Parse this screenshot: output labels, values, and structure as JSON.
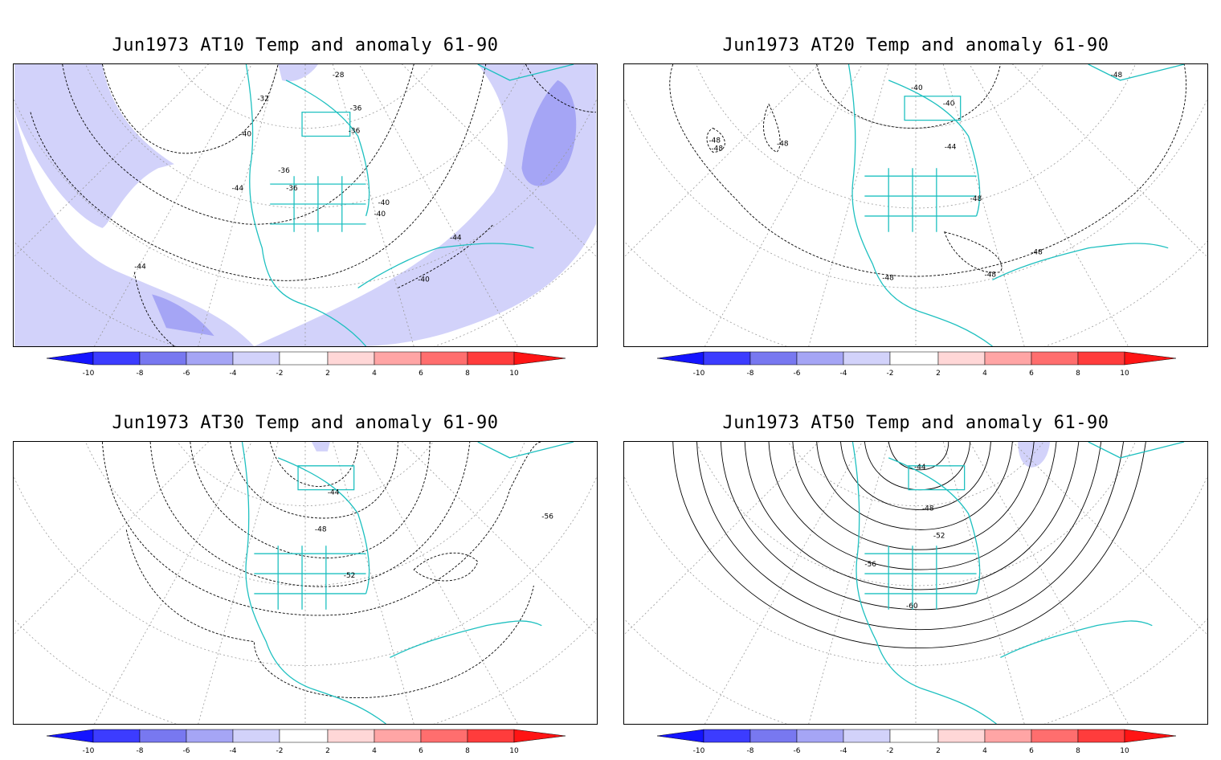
{
  "panels": [
    {
      "title": "Jun1973 AT10 Temp and anomaly 61-90",
      "contour_labels": [
        "-28",
        "-32",
        "-36",
        "-36",
        "-36",
        "-36",
        "-40",
        "-40",
        "-40",
        "-44",
        "-44",
        "-44",
        "-40"
      ]
    },
    {
      "title": "Jun1973 AT20 Temp and anomaly 61-90",
      "contour_labels": [
        "-40",
        "-40",
        "-44",
        "-48",
        "-48",
        "-48",
        "-48",
        "-48",
        "-48",
        "-48",
        "-48"
      ]
    },
    {
      "title": "Jun1973 AT30 Temp and anomaly 61-90",
      "contour_labels": [
        "-44",
        "-48",
        "-52",
        "-56"
      ]
    },
    {
      "title": "Jun1973 AT50 Temp and anomaly 61-90",
      "contour_labels": [
        "-44",
        "-48",
        "-52",
        "-56",
        "-60"
      ]
    }
  ],
  "colorbar": {
    "ticks": [
      "-10",
      "-8",
      "-6",
      "-4",
      "-2",
      "2",
      "4",
      "6",
      "8",
      "10"
    ],
    "colors": [
      "#1414ff",
      "#3c3cff",
      "#7878f0",
      "#a5a5f5",
      "#d2d2fa",
      "#ffffff",
      "#ffd7d7",
      "#ffa5a5",
      "#ff6e6e",
      "#ff3c3c",
      "#ff1414"
    ]
  },
  "colors": {
    "coastline": "#1ec0c0",
    "contour": "#000000",
    "graticule": "#888888"
  }
}
